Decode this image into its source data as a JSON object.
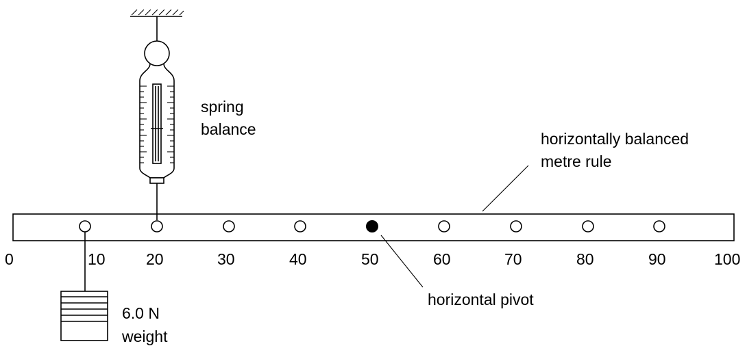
{
  "labels": {
    "spring_balance_line1": "spring",
    "spring_balance_line2": "balance",
    "rule_line1": "horizontally balanced",
    "rule_line2": "metre rule",
    "pivot": "horizontal pivot",
    "weight_line1": "6.0 N",
    "weight_line2": "weight"
  },
  "scale_marks": [
    "0",
    "10",
    "20",
    "30",
    "40",
    "50",
    "60",
    "70",
    "80",
    "90",
    "100"
  ],
  "holes": [
    10,
    20,
    30,
    40,
    50,
    60,
    70,
    80,
    90
  ],
  "pivot_position": 50,
  "spring_position": 20,
  "weight_position": 10,
  "colors": {
    "ink": "#000000",
    "background": "#ffffff"
  }
}
